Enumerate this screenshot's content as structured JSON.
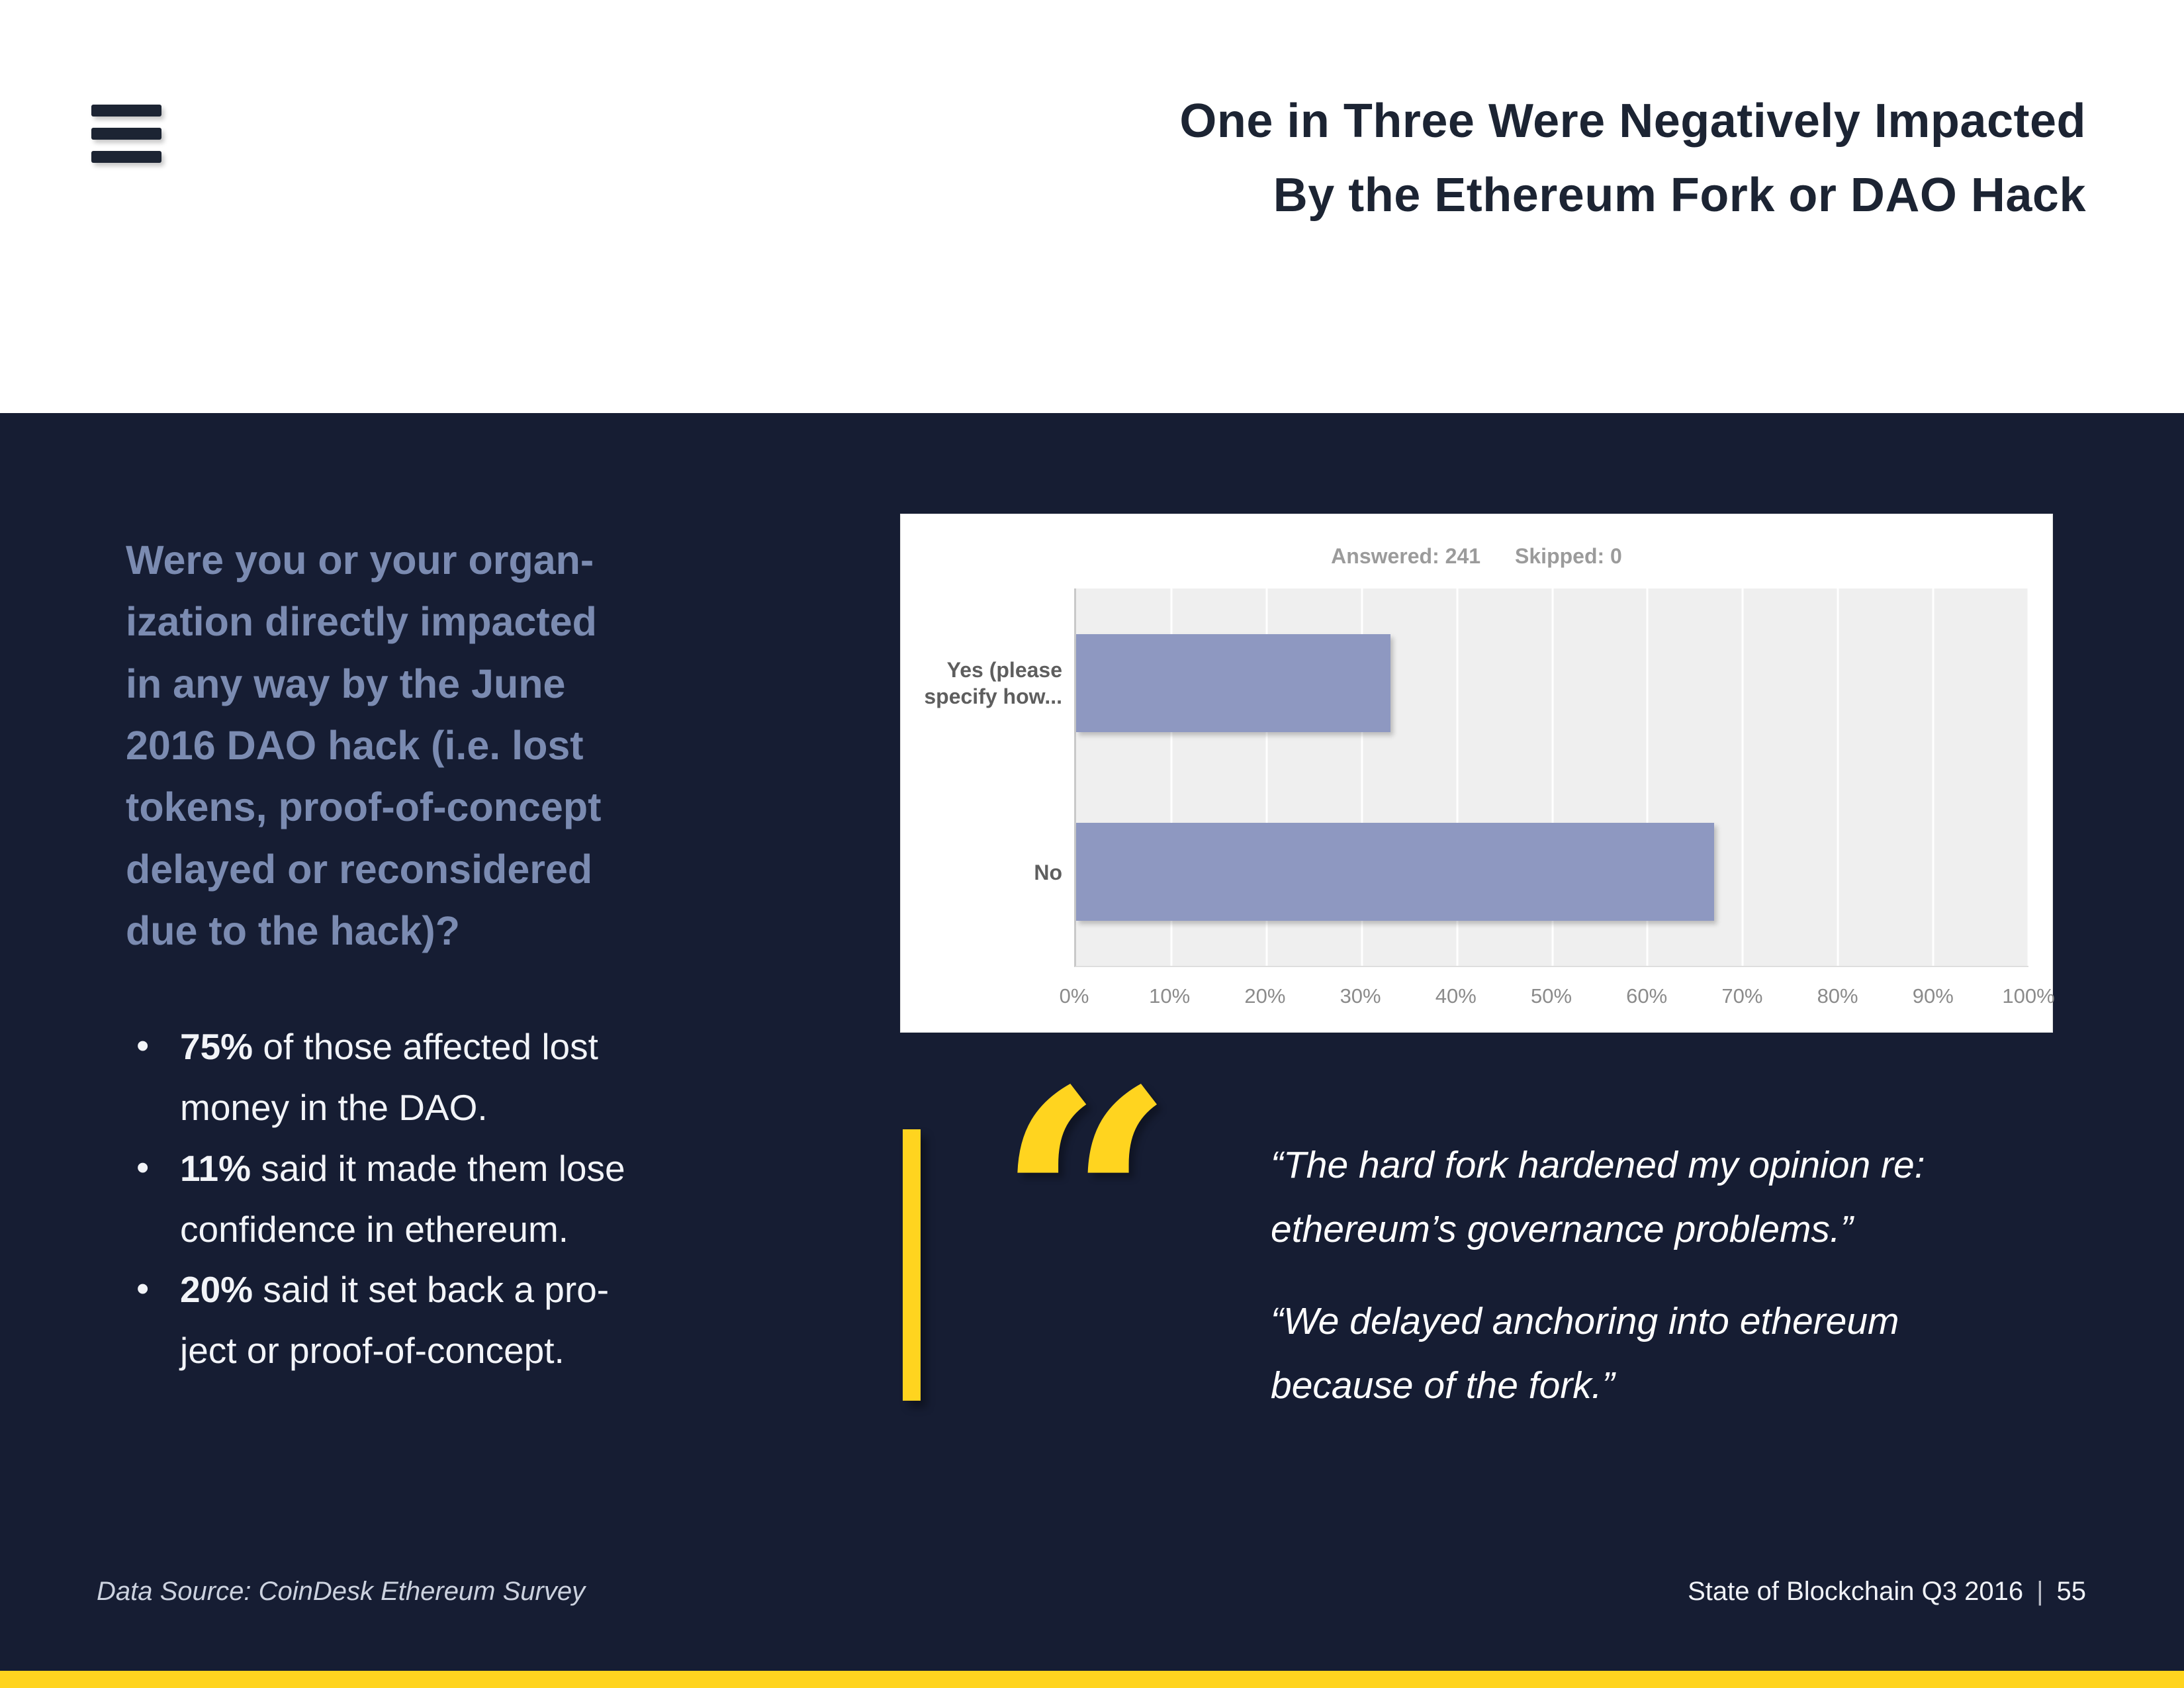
{
  "header": {
    "title": "One in Three Were Negatively Impacted\nBy the Ethereum Fork or DAO Hack"
  },
  "question": "Were you or your organ-\nization directly impacted\nin any way by the June\n2016 DAO hack (i.e. lost\ntokens, proof-of-concept\ndelayed or reconsidered\ndue to the hack)?",
  "bullets": [
    {
      "bold": "75%",
      "text": " of those affected lost\nmoney in the DAO."
    },
    {
      "bold": "11%",
      "text": " said it made them lose\nconfidence in ethereum."
    },
    {
      "bold": "20%",
      "text": " said it set back a pro-\nject or proof-of-concept."
    }
  ],
  "chart": {
    "answered_label": "Answered: 241",
    "skipped_label": "Skipped: 0"
  },
  "chart_data": {
    "type": "bar",
    "orientation": "horizontal",
    "title": "Were you or your organization directly impacted in any way by the June 2016 DAO hack?",
    "answered": 241,
    "skipped": 0,
    "categories": [
      "Yes (please specify how...",
      "No"
    ],
    "values": [
      33,
      67
    ],
    "x_ticks": [
      "0%",
      "10%",
      "20%",
      "30%",
      "40%",
      "50%",
      "60%",
      "70%",
      "80%",
      "90%",
      "100%"
    ],
    "xlim": [
      0,
      100
    ],
    "grid": true,
    "legend": "none",
    "bar_color": "#8e98c1",
    "plot_bg": "#efefef"
  },
  "quotes": [
    "“The hard fork hardened my opinion re:\nethereum’s governance problems.”",
    "“We delayed anchoring into ethereum\nbecause of the fork.”"
  ],
  "quote_glyph": "“",
  "footer": {
    "source": "Data Source: CoinDesk Ethereum Survey",
    "report": "State of Blockchain Q3 2016",
    "separator": "|",
    "page": "55"
  },
  "colors": {
    "navy_bg": "#161d33",
    "title_navy": "#1c2433",
    "question_slate": "#7b8bb1",
    "accent_yellow": "#ffd41f",
    "bar_purple": "#8e98c1",
    "white": "#ffffff"
  }
}
